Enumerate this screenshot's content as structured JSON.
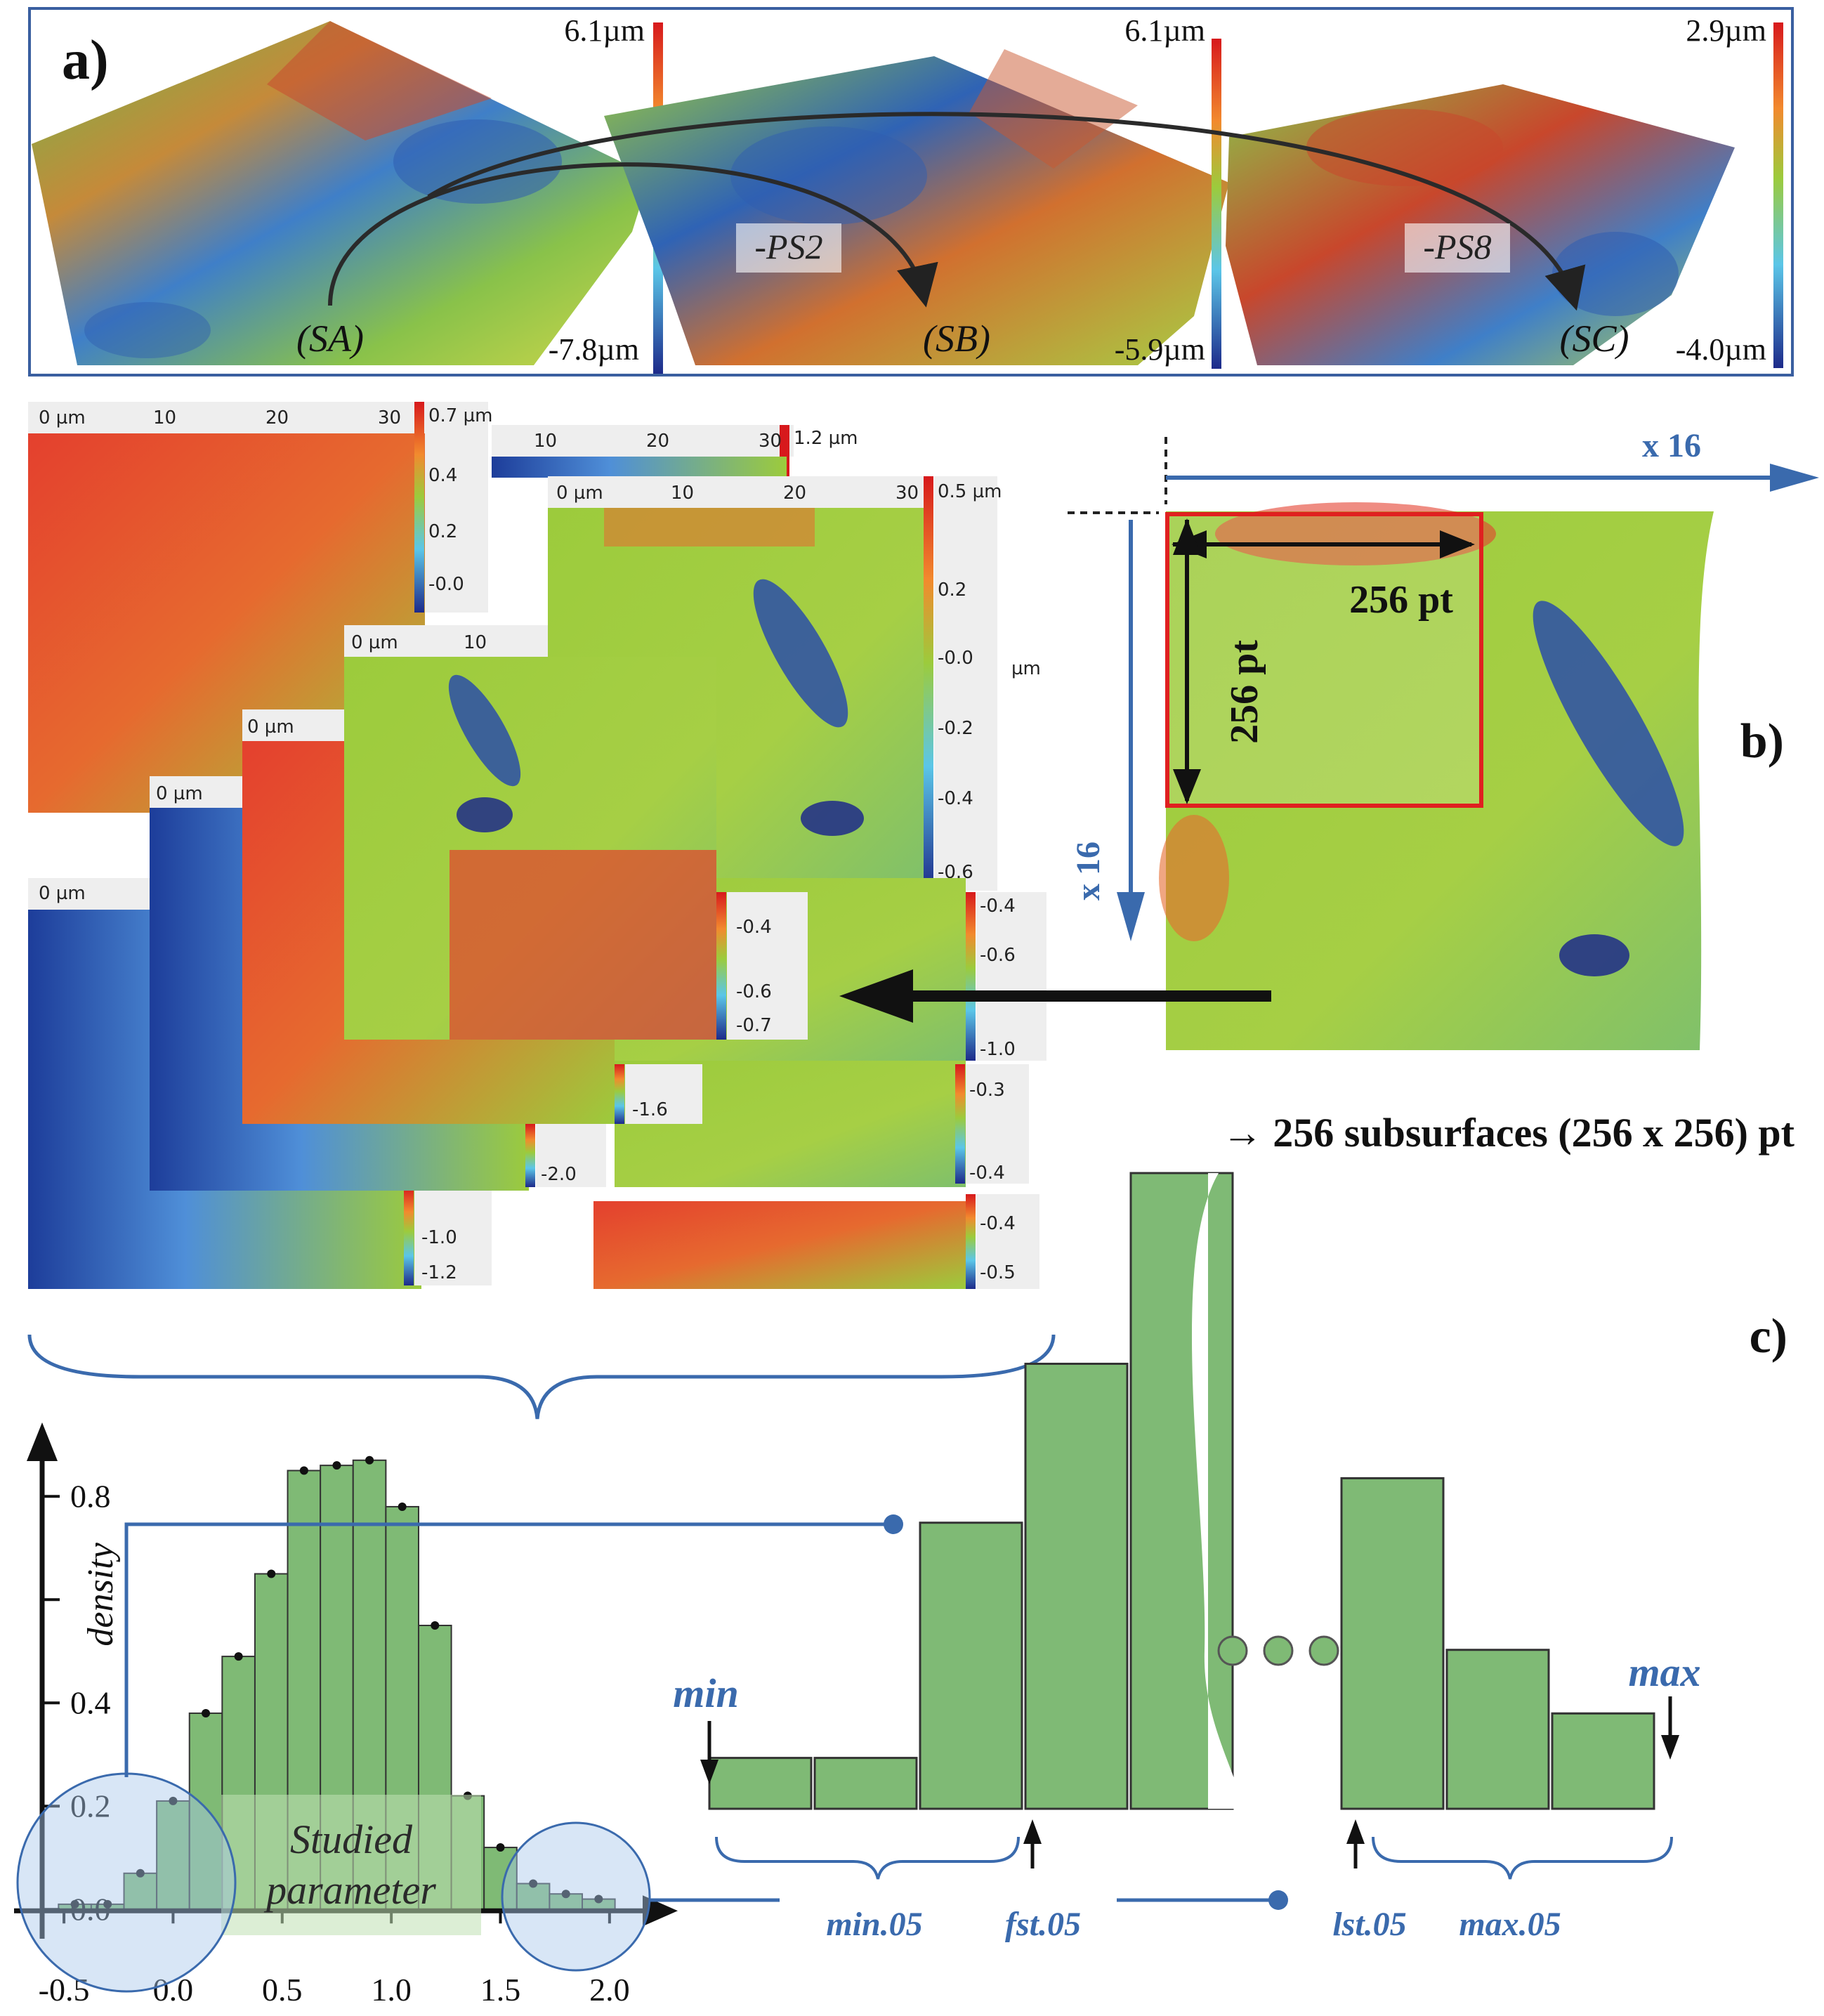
{
  "panel_labels": {
    "a": "a)",
    "b": "b)",
    "c": "c)"
  },
  "panel_a": {
    "surfaces": [
      {
        "name": "(SA)",
        "top": "6.1µm",
        "bottom": "-7.8µm"
      },
      {
        "name": "(SB)",
        "top": "6.1µm",
        "bottom": "-5.9µm"
      },
      {
        "name": "(SC)",
        "top": "2.9µm",
        "bottom": "-4.0µm"
      }
    ],
    "arrows": [
      "-PS2",
      "-PS8"
    ]
  },
  "panel_b": {
    "multiplier_x": "x 16",
    "multiplier_y": "x 16",
    "width_label": "256 pt",
    "height_label": "256 pt",
    "summary": "→ 256 subsurfaces (256 x 256) pt",
    "tiles": [
      {
        "ticks": [
          "0 µm",
          "10",
          "20",
          "30"
        ],
        "scale": [
          "0.7 µm",
          "0.4",
          "0.2",
          "-0.0"
        ]
      },
      {
        "ticks": [
          "10",
          "20",
          "30"
        ],
        "scale": [
          "1.2 µm"
        ]
      },
      {
        "ticks": [
          "0 µm",
          "10",
          "20",
          "30"
        ],
        "scale": [
          "0.5 µm",
          "0.2",
          "-0.0",
          "-0.2",
          "-0.4",
          "-0.6"
        ]
      },
      {
        "ticks": [
          "0 µm",
          "10"
        ],
        "scale": [
          "-0.4",
          "-0.6",
          "-0.7"
        ]
      },
      {
        "ticks": [
          "0 µm"
        ],
        "scale": [
          "-1.6"
        ]
      },
      {
        "ticks": [
          "0 µm"
        ],
        "scale": [
          "-2.0"
        ]
      },
      {
        "ticks": [
          "0 µm"
        ],
        "scale": [
          "-1.0",
          "-1.2"
        ]
      },
      {
        "ticks": [],
        "scale": [
          "-0.4",
          "-0.6",
          "-1.0"
        ]
      },
      {
        "ticks": [],
        "scale": [
          "-0.3",
          "-0.4"
        ]
      },
      {
        "ticks": [],
        "scale": [
          "-0.4",
          "-0.5"
        ]
      },
      {
        "ticks": [
          "µm"
        ],
        "scale": []
      }
    ]
  },
  "panel_c": {
    "studied_parameter": "Studied parameter",
    "labels": {
      "min": "min",
      "max": "max",
      "min05": "min.05",
      "fst05": "fst.05",
      "lst05": "lst.05",
      "max05": "max.05"
    },
    "schematic_bars": [
      0.08,
      0.08,
      0.45,
      0.7,
      1.0,
      0.52,
      0.25,
      0.15
    ]
  },
  "chart_data": {
    "type": "bar",
    "title": "",
    "xlabel": "",
    "ylabel": "density",
    "x": [
      -0.45,
      -0.3,
      -0.15,
      0.0,
      0.15,
      0.3,
      0.45,
      0.6,
      0.75,
      0.9,
      1.05,
      1.2,
      1.35,
      1.5,
      1.65,
      1.8,
      1.95
    ],
    "values": [
      0.01,
      0.01,
      0.07,
      0.21,
      0.38,
      0.49,
      0.65,
      0.85,
      0.86,
      0.87,
      0.78,
      0.55,
      0.22,
      0.12,
      0.05,
      0.03,
      0.02
    ],
    "bin_width": 0.15,
    "xlim": [
      -0.6,
      2.2
    ],
    "ylim": [
      -0.05,
      0.95
    ],
    "xticks": [
      "-0.5",
      "0.0",
      "0.5",
      "1.0",
      "1.5",
      "2.0"
    ],
    "yticks": [
      "0.0",
      "0.2",
      "0.4",
      "0.8"
    ]
  }
}
